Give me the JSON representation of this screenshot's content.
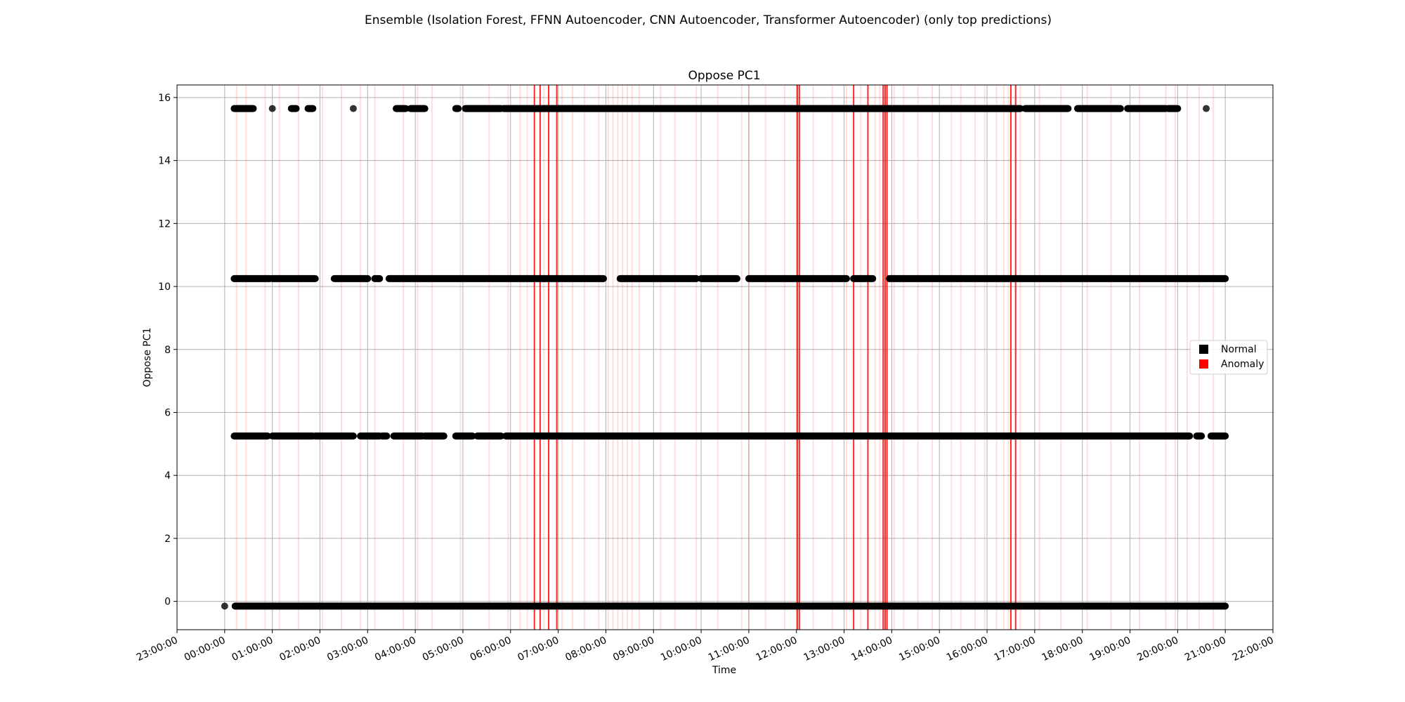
{
  "figure": {
    "suptitle": "Ensemble (Isolation Forest, FFNN Autoencoder, CNN Autoencoder, Transformer Autoencoder) (only top predictions)"
  },
  "chart_data": {
    "type": "scatter",
    "title": "Oppose PC1",
    "xlabel": "Time",
    "ylabel": "Oppose PC1",
    "grid": true,
    "x_ticks": [
      "23:00:00",
      "00:00:00",
      "01:00:00",
      "02:00:00",
      "03:00:00",
      "04:00:00",
      "05:00:00",
      "06:00:00",
      "07:00:00",
      "08:00:00",
      "09:00:00",
      "10:00:00",
      "11:00:00",
      "12:00:00",
      "13:00:00",
      "14:00:00",
      "15:00:00",
      "16:00:00",
      "17:00:00",
      "18:00:00",
      "19:00:00",
      "20:00:00",
      "21:00:00",
      "22:00:00"
    ],
    "x_range_hours": [
      -1.0,
      22.0
    ],
    "y_ticks": [
      0,
      2,
      4,
      6,
      8,
      10,
      12,
      14,
      16
    ],
    "ylim": [
      -0.9,
      16.4
    ],
    "legend": {
      "placement": "center-right",
      "entries": [
        {
          "label": "Normal",
          "color": "#000000"
        },
        {
          "label": "Anomaly",
          "color": "#ff0000"
        }
      ]
    },
    "levels": [
      {
        "y": -0.15,
        "segments": [
          [
            0.0,
            0.02
          ],
          [
            0.22,
            21.0
          ]
        ]
      },
      {
        "y": 5.25,
        "segments": [
          [
            0.2,
            0.9
          ],
          [
            1.0,
            1.85
          ],
          [
            1.9,
            2.7
          ],
          [
            2.85,
            3.25
          ],
          [
            3.3,
            3.4
          ],
          [
            3.55,
            4.15
          ],
          [
            4.2,
            4.6
          ],
          [
            4.85,
            5.2
          ],
          [
            5.3,
            5.8
          ],
          [
            5.9,
            20.25
          ],
          [
            20.4,
            20.5
          ],
          [
            20.7,
            21.0
          ]
        ]
      },
      {
        "y": 10.25,
        "segments": [
          [
            0.2,
            0.95
          ],
          [
            1.0,
            1.9
          ],
          [
            2.3,
            3.0
          ],
          [
            3.15,
            3.25
          ],
          [
            3.45,
            7.95
          ],
          [
            8.3,
            9.9
          ],
          [
            10.0,
            10.75
          ],
          [
            11.0,
            13.05
          ],
          [
            13.2,
            13.6
          ],
          [
            13.95,
            21.0
          ]
        ]
      },
      {
        "y": 15.65,
        "segments": [
          [
            0.2,
            0.6
          ],
          [
            1.0,
            1.02
          ],
          [
            1.4,
            1.5
          ],
          [
            1.75,
            1.85
          ],
          [
            2.7,
            2.72
          ],
          [
            3.6,
            3.8
          ],
          [
            3.9,
            4.2
          ],
          [
            4.85,
            4.9
          ],
          [
            5.05,
            5.8
          ],
          [
            5.85,
            7.0
          ],
          [
            7.0,
            16.7
          ],
          [
            16.8,
            17.7
          ],
          [
            17.9,
            18.8
          ],
          [
            18.95,
            19.75
          ],
          [
            19.8,
            20.0
          ],
          [
            20.6,
            20.62
          ]
        ]
      }
    ],
    "anomaly_bands_strong": [
      6.5,
      6.62,
      6.8,
      6.97,
      12.02,
      12.06,
      13.2,
      13.5,
      13.82,
      13.86,
      13.9,
      16.5,
      16.6
    ],
    "anomaly_bands_light": [
      0.25,
      0.45,
      0.85,
      1.15,
      1.55,
      2.05,
      2.45,
      2.85,
      3.15,
      3.75,
      4.05,
      4.35,
      4.95,
      5.55,
      5.95,
      6.2,
      6.35,
      6.7,
      7.08,
      7.3,
      7.55,
      7.85,
      8.05,
      8.15,
      8.25,
      8.35,
      8.45,
      8.55,
      8.7,
      9.15,
      9.45,
      9.9,
      10.35,
      10.85,
      11.0,
      11.35,
      11.75,
      12.35,
      12.75,
      13.05,
      13.35,
      13.65,
      13.75,
      14.05,
      14.25,
      14.55,
      14.85,
      15.25,
      15.45,
      15.75,
      15.95,
      16.2,
      16.35,
      16.45,
      16.7,
      17.1,
      17.55,
      18.1,
      18.6,
      19.2,
      19.75,
      19.95,
      20.2,
      20.45,
      20.75
    ]
  }
}
